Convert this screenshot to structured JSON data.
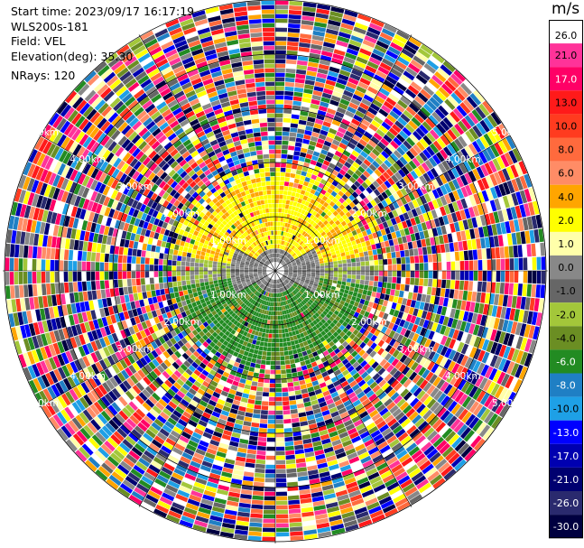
{
  "header": {
    "start_time": "Start time: 2023/09/17 16:17:19",
    "instrument": "WLS200s-181",
    "field": "Field: VEL",
    "elevation": "Elevation(deg): 35.30",
    "nrays": "NRays: 120"
  },
  "colorbar": {
    "unit": "m/s",
    "ticks": [
      "26.0",
      "21.0",
      "17.0",
      "13.0",
      "10.0",
      "8.0",
      "6.0",
      "4.0",
      "2.0",
      "1.0",
      "0.0",
      "-1.0",
      "-2.0",
      "-4.0",
      "-6.0",
      "-8.0",
      "-10.0",
      "-13.0",
      "-17.0",
      "-21.0",
      "-26.0",
      "-30.0"
    ],
    "colors": [
      "#ffffff",
      "#ff3399",
      "#ff0066",
      "#ff1a1a",
      "#ff3b1f",
      "#ff6a3d",
      "#ff8c66",
      "#ffa500",
      "#ffff00",
      "#ffffaa",
      "#888888",
      "#666666",
      "#a3c73a",
      "#6b8e23",
      "#228b22",
      "#1f7fc4",
      "#1ea0e6",
      "#0000ff",
      "#0000b0",
      "#000070",
      "#2a2a6e",
      "#000040"
    ]
  },
  "chart_data": {
    "type": "heatmap",
    "subtype": "ppi-polar",
    "title": "",
    "field": "VEL",
    "units": "m/s",
    "nrays": 120,
    "range_ring_labels": [
      "1.00km",
      "2.00km",
      "3.00km",
      "4.00km",
      "5.00km"
    ],
    "range_rings_km": [
      1,
      2,
      3,
      4,
      5
    ],
    "color_levels": [
      -30,
      -26,
      -21,
      -17,
      -13,
      -10,
      -8,
      -6,
      -4,
      -2,
      -1,
      0,
      1,
      2,
      4,
      6,
      8,
      10,
      13,
      17,
      21,
      26
    ],
    "description_pattern": {
      "inner_region_km": 2.0,
      "north_half": "positive 2 to 6 m/s",
      "south_half": "negative -4 to -6 m/s",
      "center": "near 0 m/s",
      "outer": "noise"
    },
    "grid": true
  }
}
